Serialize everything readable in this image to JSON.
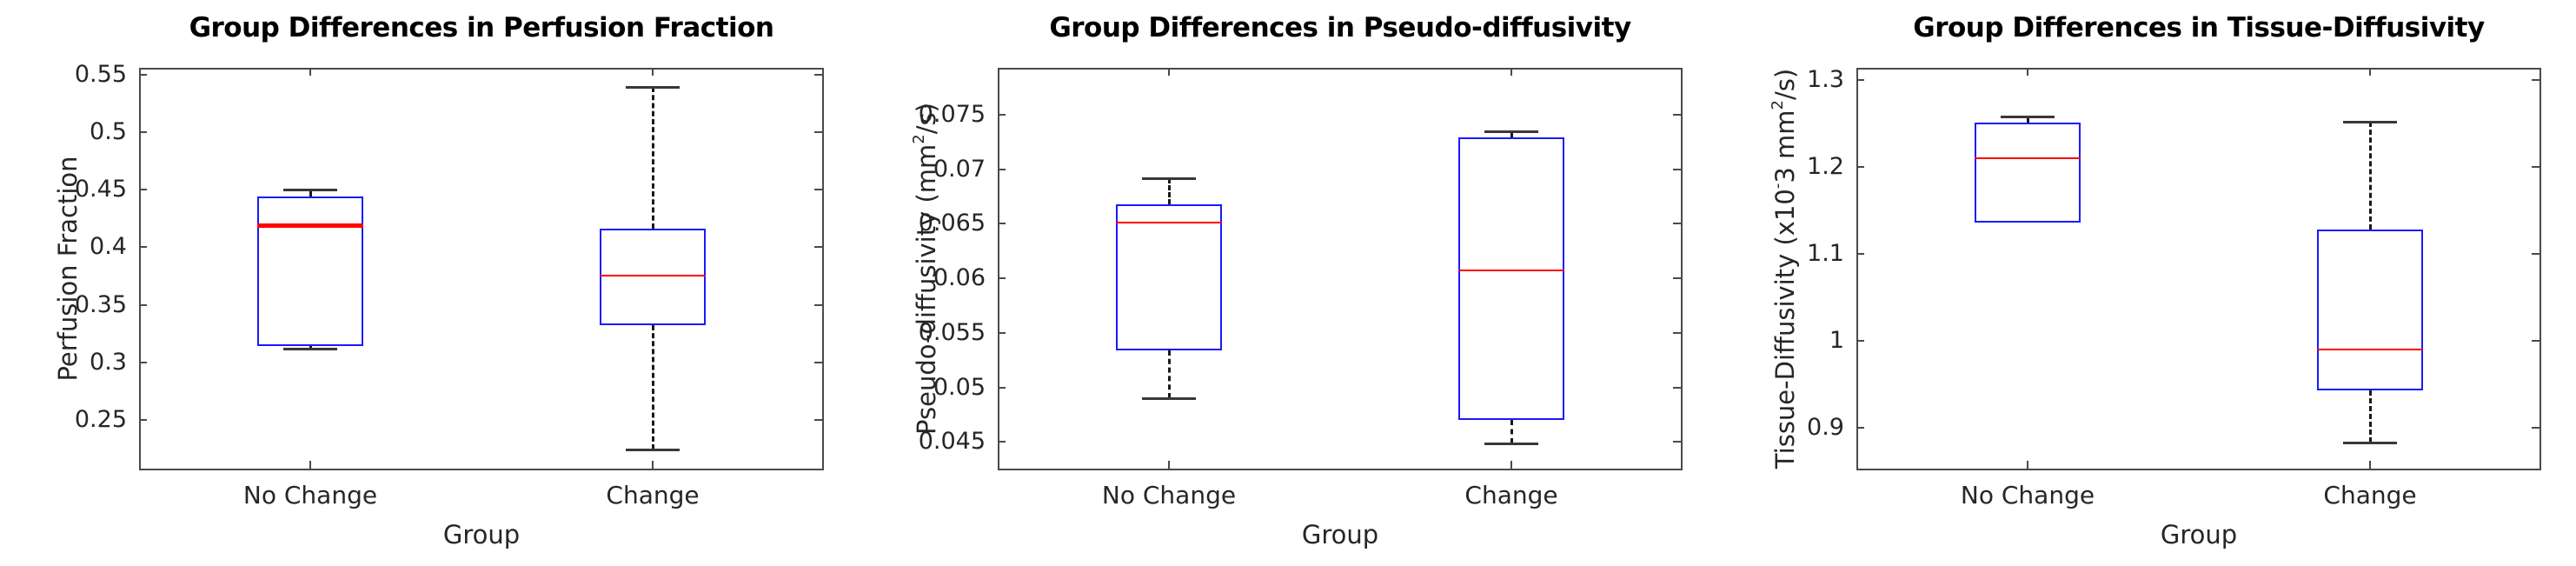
{
  "figure": {
    "background": "#ffffff"
  },
  "colors": {
    "box_edge": "#1a1aff",
    "median": "#ff0000",
    "whisker": "#1a1a1a",
    "cap": "#383838",
    "axis": "#4a4a4a",
    "tick_label": "#262626",
    "title": "#000000"
  },
  "chart_data": [
    {
      "type": "box",
      "title": "Group Differences in Perfusion Fraction",
      "xlabel": "Group",
      "ylabel": "Perfusion Fraction",
      "ylabel_parts": [
        {
          "text": "Perfusion Fraction"
        }
      ],
      "categories": [
        "No Change",
        "Change"
      ],
      "ylim": [
        0.206,
        0.556
      ],
      "yticks": [
        0.25,
        0.3,
        0.35,
        0.4,
        0.45,
        0.5,
        0.55
      ],
      "ytick_labels": [
        "0.25",
        "0.3",
        "0.35",
        "0.4",
        "0.45",
        "0.5",
        "0.55"
      ],
      "grid": false,
      "legend": null,
      "boxes": [
        {
          "category": "No Change",
          "whisker_low": 0.312,
          "q1": 0.314,
          "median": 0.419,
          "q3": 0.444,
          "whisker_high": 0.45,
          "median_thick": true
        },
        {
          "category": "Change",
          "whisker_low": 0.224,
          "q1": 0.332,
          "median": 0.375,
          "q3": 0.416,
          "whisker_high": 0.539,
          "median_thick": false
        }
      ]
    },
    {
      "type": "box",
      "title": "Group Differences in Pseudo-diffusivity",
      "xlabel": "Group",
      "ylabel": "Pseudo-diffusivity (mm^2/s)",
      "ylabel_parts": [
        {
          "text": "Pseudo-diffusivity (mm"
        },
        {
          "text": "2",
          "sup": true
        },
        {
          "text": "/s)"
        }
      ],
      "categories": [
        "No Change",
        "Change"
      ],
      "ylim": [
        0.0424,
        0.0793
      ],
      "yticks": [
        0.045,
        0.05,
        0.055,
        0.06,
        0.065,
        0.07,
        0.075
      ],
      "ytick_labels": [
        "0.045",
        "0.05",
        "0.055",
        "0.06",
        "0.065",
        "0.07",
        "0.075"
      ],
      "grid": false,
      "legend": null,
      "boxes": [
        {
          "category": "No Change",
          "whisker_low": 0.049,
          "q1": 0.0534,
          "median": 0.0651,
          "q3": 0.0668,
          "whisker_high": 0.0692,
          "median_thick": false
        },
        {
          "category": "Change",
          "whisker_low": 0.0449,
          "q1": 0.047,
          "median": 0.0607,
          "q3": 0.0729,
          "whisker_high": 0.0735,
          "median_thick": false
        }
      ]
    },
    {
      "type": "box",
      "title": "Group Differences in Tissue-Diffusivity",
      "xlabel": "Group",
      "ylabel": "Tissue-Diffusivity (x10^-3 mm^2/s)",
      "ylabel_parts": [
        {
          "text": "Tissue-Diffusivity (x10"
        },
        {
          "text": "-",
          "sup": true
        },
        {
          "text": "3 mm"
        },
        {
          "text": "2",
          "sup": true
        },
        {
          "text": "/s)"
        }
      ],
      "categories": [
        "No Change",
        "Change"
      ],
      "ylim": [
        0.851,
        1.314
      ],
      "yticks": [
        0.9,
        1.0,
        1.1,
        1.2,
        1.3
      ],
      "ytick_labels": [
        "0.9",
        "1",
        "1.1",
        "1.2",
        "1.3"
      ],
      "grid": false,
      "legend": null,
      "boxes": [
        {
          "category": "No Change",
          "whisker_low": 1.136,
          "q1": 1.136,
          "median": 1.21,
          "q3": 1.251,
          "whisker_high": 1.258,
          "median_thick": false
        },
        {
          "category": "Change",
          "whisker_low": 0.883,
          "q1": 0.943,
          "median": 0.99,
          "q3": 1.128,
          "whisker_high": 1.252,
          "median_thick": false
        }
      ]
    }
  ]
}
